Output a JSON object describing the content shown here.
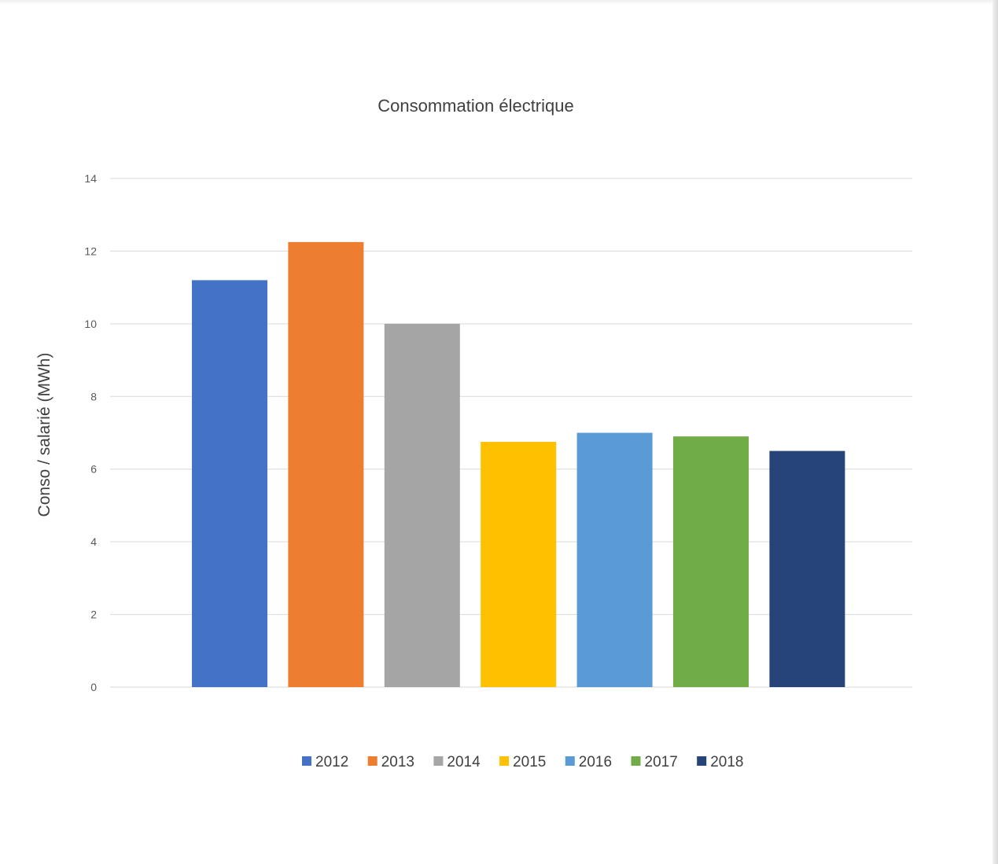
{
  "chart_data": {
    "type": "bar",
    "title": "Consommation électrique",
    "xlabel": "",
    "ylabel": "Conso / salarié (MWh)",
    "ylim": [
      0,
      14
    ],
    "yticks": [
      "0",
      "2",
      "4",
      "6",
      "8",
      "10",
      "12",
      "14"
    ],
    "grid": true,
    "legend_position": "bottom",
    "series": [
      {
        "name": "2012",
        "value": 11.2,
        "color": "#4472C4"
      },
      {
        "name": "2013",
        "value": 12.25,
        "color": "#ED7D31"
      },
      {
        "name": "2014",
        "value": 10.0,
        "color": "#A5A5A5"
      },
      {
        "name": "2015",
        "value": 6.75,
        "color": "#FFC000"
      },
      {
        "name": "2016",
        "value": 7.0,
        "color": "#5B9BD5"
      },
      {
        "name": "2017",
        "value": 6.9,
        "color": "#70AD47"
      },
      {
        "name": "2018",
        "value": 6.5,
        "color": "#264478"
      }
    ]
  }
}
